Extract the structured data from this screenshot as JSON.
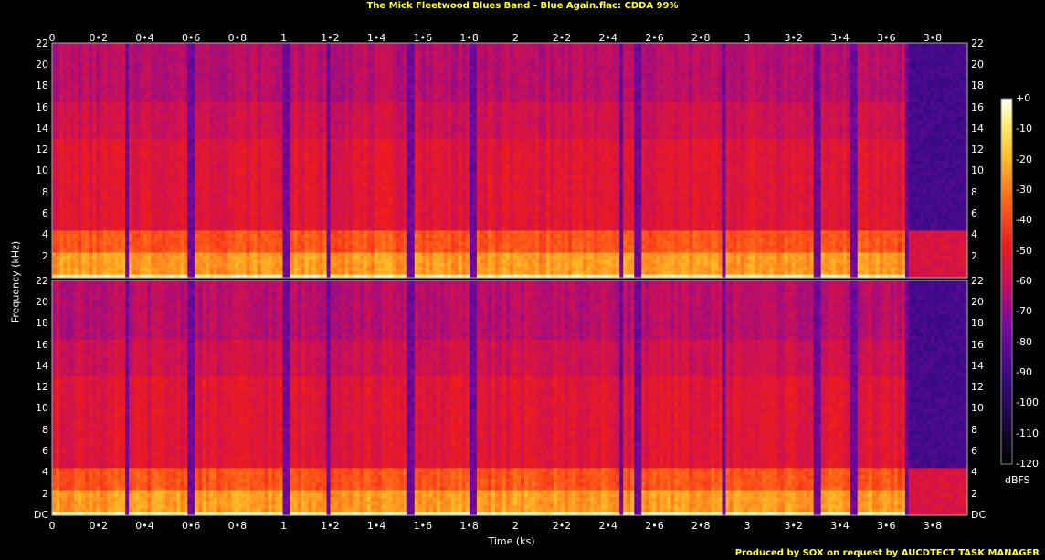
{
  "title": "The Mick Fleetwood Blues Band - Blue Again.flac: CDDA 99%",
  "footer": "Produced by SOX on request by AUCDTECT TASK MANAGER",
  "chart_data": {
    "type": "heatmap",
    "xlabel": "Time (ks)",
    "ylabel": "Frequency (kHz)",
    "x_ticks": [
      "0",
      "0•2",
      "0•4",
      "0•6",
      "0•8",
      "1",
      "1•2",
      "1•4",
      "1•6",
      "1•8",
      "2",
      "2•2",
      "2•4",
      "2•6",
      "2•8",
      "3",
      "3•2",
      "3•4",
      "3•6",
      "3•8"
    ],
    "x_tick_values": [
      0,
      0.2,
      0.4,
      0.6,
      0.8,
      1.0,
      1.2,
      1.4,
      1.6,
      1.8,
      2.0,
      2.2,
      2.4,
      2.6,
      2.8,
      3.0,
      3.2,
      3.4,
      3.6,
      3.8
    ],
    "xlim": [
      0,
      3.95
    ],
    "ylim": [
      0,
      22.05
    ],
    "y_ticks_channel1": [
      "22",
      "20",
      "18",
      "16",
      "14",
      "12",
      "10",
      "8",
      "6",
      "4",
      "2"
    ],
    "y_ticks_channel2": [
      "22",
      "20",
      "18",
      "16",
      "14",
      "12",
      "10",
      "8",
      "6",
      "4",
      "2",
      "DC"
    ],
    "y_tick_values": [
      22,
      20,
      18,
      16,
      14,
      12,
      10,
      8,
      6,
      4,
      2,
      0
    ],
    "channels": 2,
    "colorbar": {
      "unit": "dBFS",
      "range": [
        -120,
        0
      ],
      "tick_labels": [
        "+0",
        "-10",
        "-20",
        "-30",
        "-40",
        "-50",
        "-60",
        "-70",
        "-80",
        "-90",
        "-100",
        "-110",
        "-120"
      ],
      "tick_values": [
        0,
        -10,
        -20,
        -30,
        -40,
        -50,
        -60,
        -70,
        -80,
        -90,
        -100,
        -110,
        -120
      ]
    },
    "track_gaps_ks": [
      0.325,
      0.6,
      1.015,
      1.195,
      1.55,
      1.815,
      2.455,
      2.525,
      2.9,
      3.3,
      3.46,
      3.7
    ],
    "level_profile_db": [
      {
        "max_khz": 0.4,
        "db": -5
      },
      {
        "max_khz": 2.5,
        "db": -25
      },
      {
        "max_khz": 4.5,
        "db": -37
      },
      {
        "max_khz": 13,
        "db": -53
      },
      {
        "max_khz": 16.5,
        "db": -58
      },
      {
        "max_khz": 22.05,
        "db": -63
      }
    ],
    "quiet_section_ks": [
      3.7,
      3.95
    ],
    "quiet_section_db": -88
  }
}
